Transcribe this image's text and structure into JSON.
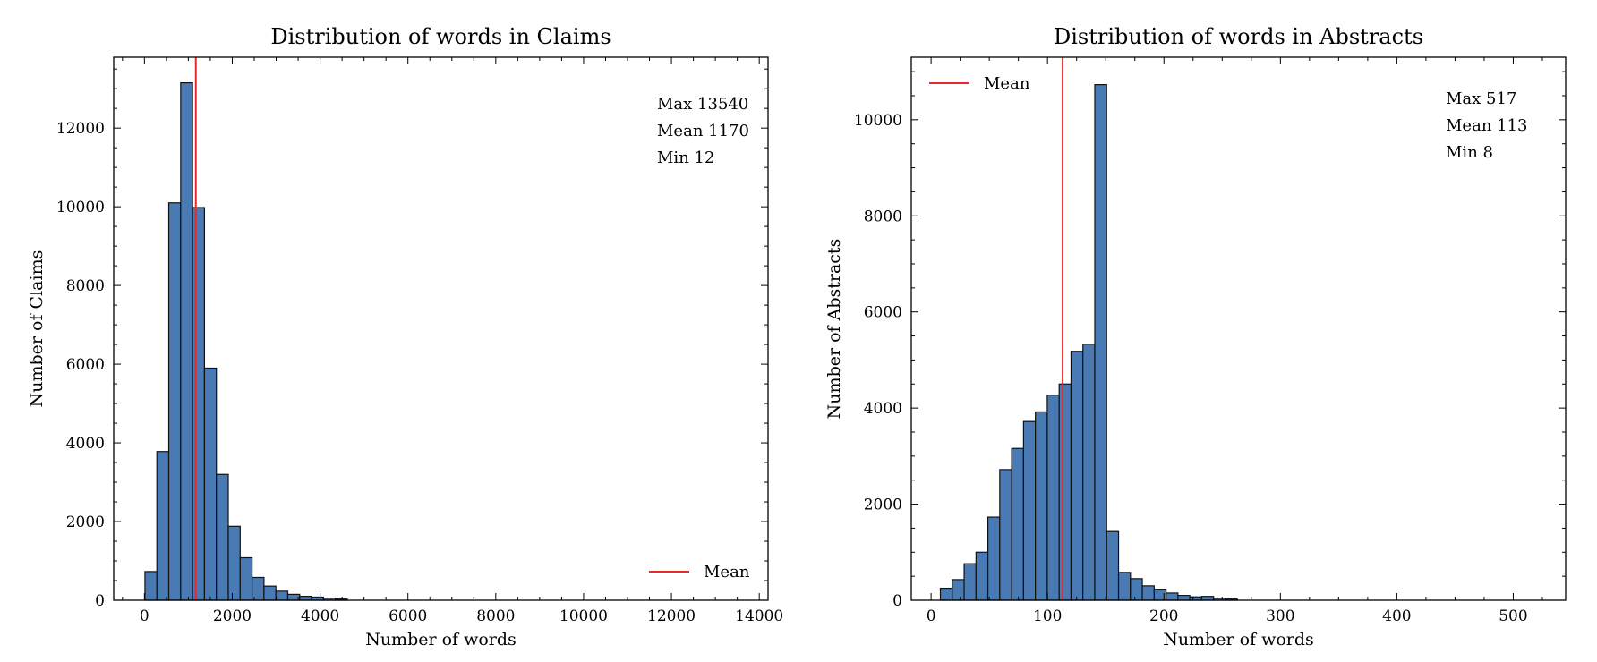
{
  "chart_data": [
    {
      "type": "bar",
      "title": "Distribution of words in Claims",
      "xlabel": "Number of words",
      "ylabel": "Number of Claims",
      "xlim": [
        -700,
        14200
      ],
      "ylim": [
        0,
        13800
      ],
      "xticks": [
        0,
        2000,
        4000,
        6000,
        8000,
        10000,
        12000,
        14000
      ],
      "yticks": [
        0,
        2000,
        4000,
        6000,
        8000,
        10000,
        12000
      ],
      "bin_width": 271,
      "bins": [
        {
          "x0": 12,
          "count": 730
        },
        {
          "x0": 283,
          "count": 3780
        },
        {
          "x0": 554,
          "count": 10100
        },
        {
          "x0": 825,
          "count": 13150
        },
        {
          "x0": 1096,
          "count": 9980
        },
        {
          "x0": 1367,
          "count": 5900
        },
        {
          "x0": 1638,
          "count": 3200
        },
        {
          "x0": 1909,
          "count": 1880
        },
        {
          "x0": 2180,
          "count": 1080
        },
        {
          "x0": 2451,
          "count": 580
        },
        {
          "x0": 2722,
          "count": 360
        },
        {
          "x0": 2993,
          "count": 230
        },
        {
          "x0": 3264,
          "count": 150
        },
        {
          "x0": 3535,
          "count": 100
        },
        {
          "x0": 3806,
          "count": 80
        },
        {
          "x0": 4077,
          "count": 50
        },
        {
          "x0": 4348,
          "count": 30
        }
      ],
      "mean_line": 1170,
      "mean_color": "#e8282b",
      "bar_color": "#4a7ab3",
      "stats": {
        "max": "Max 13540",
        "mean": "Mean 1170",
        "min": "Min 12"
      },
      "legend": {
        "label": "Mean",
        "position": "lower-right"
      }
    },
    {
      "type": "bar",
      "title": "Distribution of words in Abstracts",
      "xlabel": "Number of words",
      "ylabel": "Number of Abstracts",
      "xlim": [
        -17,
        545
      ],
      "ylim": [
        0,
        11300
      ],
      "xticks": [
        0,
        100,
        200,
        300,
        400,
        500
      ],
      "yticks": [
        0,
        2000,
        4000,
        6000,
        8000,
        10000
      ],
      "bin_width": 10.2,
      "bins": [
        {
          "x0": 8,
          "count": 250
        },
        {
          "x0": 18.2,
          "count": 430
        },
        {
          "x0": 28.4,
          "count": 760
        },
        {
          "x0": 38.6,
          "count": 1000
        },
        {
          "x0": 48.8,
          "count": 1730
        },
        {
          "x0": 59,
          "count": 2720
        },
        {
          "x0": 69.2,
          "count": 3160
        },
        {
          "x0": 79.4,
          "count": 3720
        },
        {
          "x0": 89.6,
          "count": 3920
        },
        {
          "x0": 99.8,
          "count": 4270
        },
        {
          "x0": 110,
          "count": 4500
        },
        {
          "x0": 120.2,
          "count": 5180
        },
        {
          "x0": 130.4,
          "count": 5330
        },
        {
          "x0": 140.6,
          "count": 10730
        },
        {
          "x0": 150.8,
          "count": 1430
        },
        {
          "x0": 161,
          "count": 580
        },
        {
          "x0": 171.2,
          "count": 450
        },
        {
          "x0": 181.4,
          "count": 300
        },
        {
          "x0": 191.6,
          "count": 230
        },
        {
          "x0": 201.8,
          "count": 150
        },
        {
          "x0": 212,
          "count": 100
        },
        {
          "x0": 222.2,
          "count": 70
        },
        {
          "x0": 232.4,
          "count": 80
        },
        {
          "x0": 242.6,
          "count": 40
        },
        {
          "x0": 252.8,
          "count": 25
        }
      ],
      "mean_line": 113,
      "mean_color": "#e8282b",
      "bar_color": "#4a7ab3",
      "stats": {
        "max": "Max 517",
        "mean": "Mean 113",
        "min": "Min 8"
      },
      "legend": {
        "label": "Mean",
        "position": "upper-left"
      }
    }
  ]
}
